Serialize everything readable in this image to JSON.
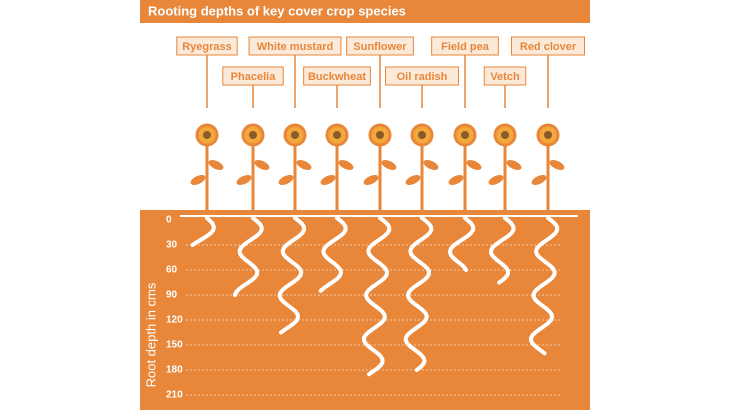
{
  "chart_data": {
    "type": "bar",
    "title": "Rooting depths of key cover crop species",
    "y_label": "Root depth in cms",
    "categories": [
      "Ryegrass",
      "Phacelia",
      "White mustard",
      "Buckwheat",
      "Sunflower",
      "Oil radish",
      "Field pea",
      "Vetch",
      "Red clover"
    ],
    "values": [
      30,
      90,
      135,
      85,
      185,
      180,
      60,
      75,
      160
    ],
    "color": "#ffffff",
    "ylim": [
      0,
      210
    ],
    "yticks": [
      0,
      30,
      60,
      90,
      120,
      150,
      180,
      210
    ],
    "y_inverted": true,
    "grid": true
  }
}
